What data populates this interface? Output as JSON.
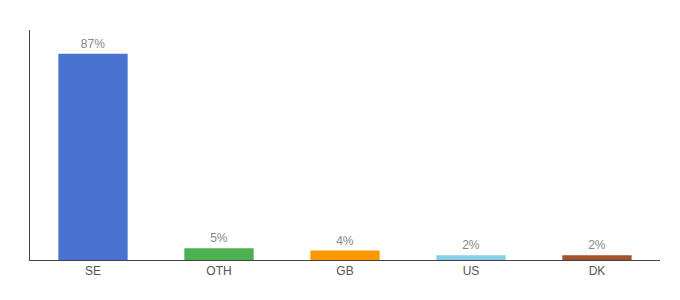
{
  "chart_data": {
    "type": "bar",
    "categories": [
      "SE",
      "OTH",
      "GB",
      "US",
      "DK"
    ],
    "values": [
      87,
      5,
      4,
      2,
      2
    ],
    "value_labels": [
      "87%",
      "5%",
      "4%",
      "2%",
      "2%"
    ],
    "colors": [
      "#4a72d1",
      "#4caf50",
      "#ff9800",
      "#87ceeb",
      "#a0522d"
    ],
    "ylim": [
      0,
      97
    ],
    "data_labels": true,
    "grid": false,
    "tick_labels": "x"
  }
}
